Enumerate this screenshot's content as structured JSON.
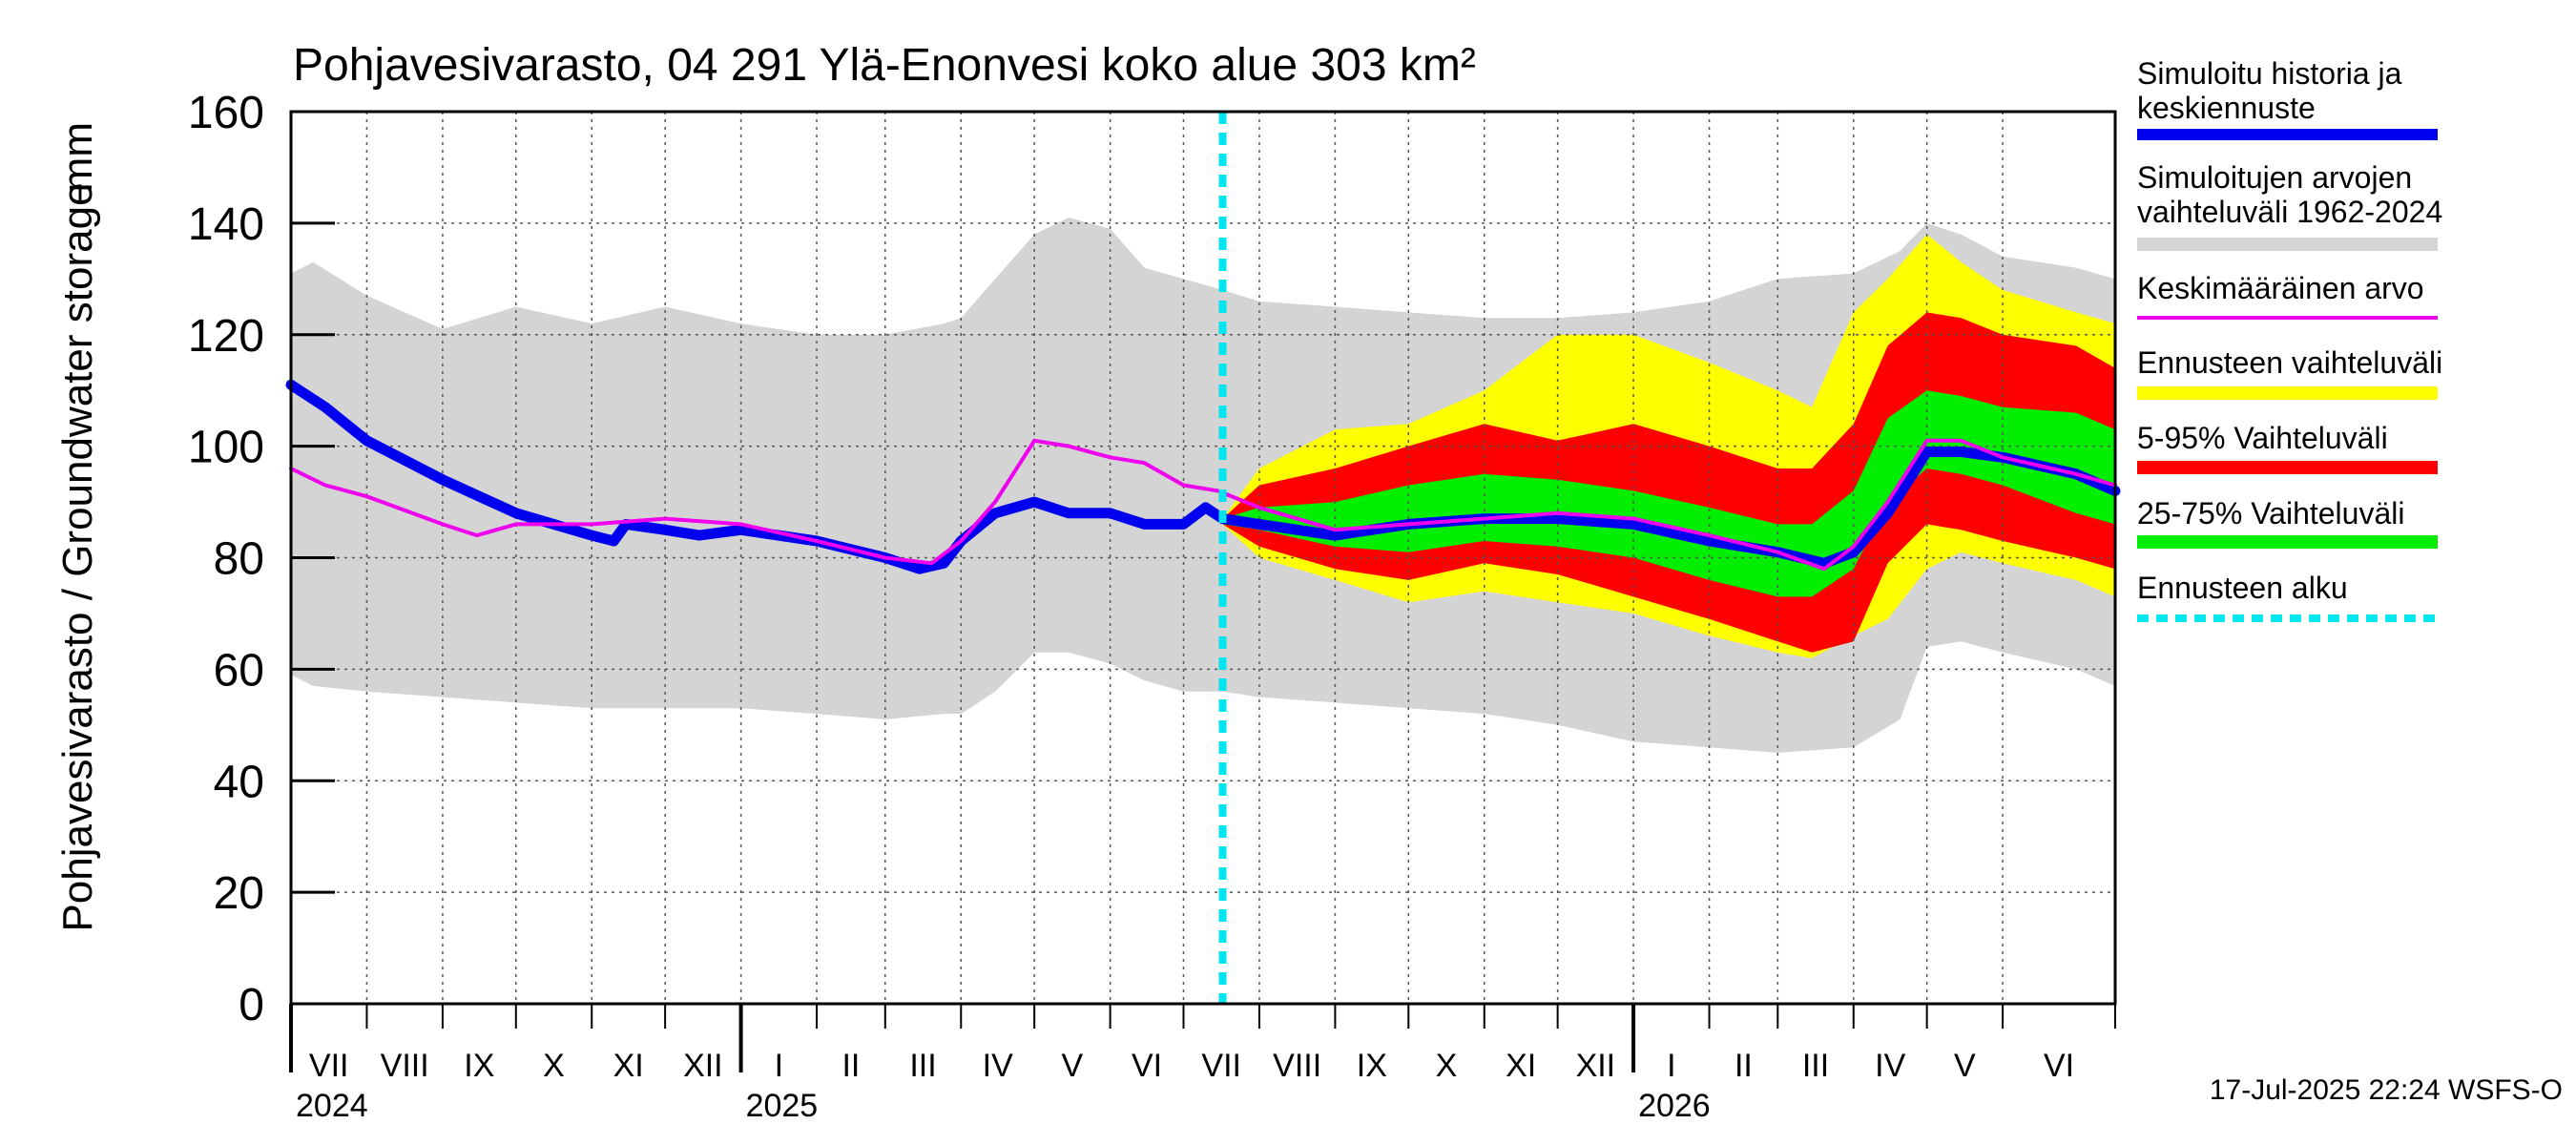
{
  "chart_data": {
    "type": "area",
    "title": "Pohjavesivarasto, 04 291 Ylä-Enonvesi koko alue 303 km²",
    "ylabel": "Pohjavesivarasto / Groundwater storage",
    "yunit": "mm",
    "ylim": [
      0,
      160
    ],
    "yticks": [
      0,
      20,
      40,
      60,
      80,
      100,
      120,
      140,
      160
    ],
    "xlim": [
      "2024-07-01",
      "2026-07-17"
    ],
    "grid": true,
    "legend_position": "right",
    "month_labels": [
      {
        "label": "VII",
        "date": "2024-07-01"
      },
      {
        "label": "VIII",
        "date": "2024-08-01"
      },
      {
        "label": "IX",
        "date": "2024-09-01"
      },
      {
        "label": "X",
        "date": "2024-10-01"
      },
      {
        "label": "XI",
        "date": "2024-11-01"
      },
      {
        "label": "XII",
        "date": "2024-12-01"
      },
      {
        "label": "I",
        "date": "2025-01-01"
      },
      {
        "label": "II",
        "date": "2025-02-01"
      },
      {
        "label": "III",
        "date": "2025-03-01"
      },
      {
        "label": "IV",
        "date": "2025-04-01"
      },
      {
        "label": "V",
        "date": "2025-05-01"
      },
      {
        "label": "VI",
        "date": "2025-06-01"
      },
      {
        "label": "VII",
        "date": "2025-07-01"
      },
      {
        "label": "VIII",
        "date": "2025-08-01"
      },
      {
        "label": "IX",
        "date": "2025-09-01"
      },
      {
        "label": "X",
        "date": "2025-10-01"
      },
      {
        "label": "XI",
        "date": "2025-11-01"
      },
      {
        "label": "XII",
        "date": "2025-12-01"
      },
      {
        "label": "I",
        "date": "2026-01-01"
      },
      {
        "label": "II",
        "date": "2026-02-01"
      },
      {
        "label": "III",
        "date": "2026-03-01"
      },
      {
        "label": "IV",
        "date": "2026-04-01"
      },
      {
        "label": "V",
        "date": "2026-05-01"
      },
      {
        "label": "VI",
        "date": "2026-06-01"
      }
    ],
    "year_labels": [
      {
        "label": "2024",
        "date": "2024-07-01"
      },
      {
        "label": "2025",
        "date": "2025-01-01"
      },
      {
        "label": "2026",
        "date": "2026-01-01"
      }
    ],
    "forecast_start": "2025-07-17",
    "footer": "17-Jul-2025 22:24 WSFS-O",
    "colors": {
      "history": "#0000ee",
      "mean": "#ee00ee",
      "hist_range": "#d4d4d4",
      "forecast_range": "#ffff00",
      "p5_95": "#ff0000",
      "p25_75": "#00ee00",
      "forecast_start": "#00e5ee",
      "grid": "#555555"
    },
    "legend": [
      {
        "key": "history",
        "lines": [
          "Simuloitu historia ja",
          "keskiennuste"
        ],
        "style": "thick-line"
      },
      {
        "key": "hist_range",
        "lines": [
          "Simuloitujen arvojen",
          "vaihteluväli 1962-2024"
        ],
        "style": "band"
      },
      {
        "key": "mean",
        "lines": [
          "Keskimääräinen arvo"
        ],
        "style": "thin-line"
      },
      {
        "key": "forecast_range",
        "lines": [
          "Ennusteen vaihteluväli"
        ],
        "style": "band"
      },
      {
        "key": "p5_95",
        "lines": [
          "5-95% Vaihteluväli"
        ],
        "style": "band"
      },
      {
        "key": "p25_75",
        "lines": [
          "25-75% Vaihteluväli"
        ],
        "style": "band"
      },
      {
        "key": "forecast_start",
        "lines": [
          "Ennusteen alku"
        ],
        "style": "dotted"
      }
    ],
    "series": {
      "hist_range": {
        "x": [
          "2024-07-01",
          "2024-07-10",
          "2024-08-01",
          "2024-09-01",
          "2024-10-01",
          "2024-11-01",
          "2024-12-01",
          "2025-01-01",
          "2025-02-01",
          "2025-03-01",
          "2025-03-25",
          "2025-04-01",
          "2025-04-15",
          "2025-05-01",
          "2025-05-15",
          "2025-06-01",
          "2025-06-15",
          "2025-07-01",
          "2025-07-17",
          "2025-08-01",
          "2025-09-01",
          "2025-10-01",
          "2025-11-01",
          "2025-12-01",
          "2026-01-01",
          "2026-02-01",
          "2026-03-01",
          "2026-04-01",
          "2026-04-20",
          "2026-05-01",
          "2026-05-15",
          "2026-06-01",
          "2026-07-01",
          "2026-07-17"
        ],
        "upper": [
          131,
          133,
          127,
          121,
          125,
          122,
          125,
          122,
          120,
          120,
          122,
          123,
          130,
          138,
          141,
          139,
          132,
          130,
          128,
          126,
          125,
          124,
          123,
          123,
          124,
          126,
          130,
          131,
          135,
          140,
          138,
          134,
          132,
          130
        ],
        "lower": [
          59,
          57,
          56,
          55,
          54,
          53,
          53,
          53,
          52,
          51,
          52,
          52,
          56,
          63,
          63,
          61,
          58,
          56,
          56,
          55,
          54,
          53,
          52,
          50,
          47,
          46,
          45,
          46,
          51,
          64,
          65,
          63,
          60,
          57
        ]
      },
      "forecast_range": {
        "x": [
          "2025-07-17",
          "2025-08-01",
          "2025-09-01",
          "2025-10-01",
          "2025-11-01",
          "2025-12-01",
          "2026-01-01",
          "2026-02-01",
          "2026-03-01",
          "2026-03-15",
          "2026-04-01",
          "2026-04-15",
          "2026-05-01",
          "2026-05-15",
          "2026-06-01",
          "2026-07-01",
          "2026-07-17"
        ],
        "upper": [
          87,
          96,
          103,
          104,
          110,
          120,
          120,
          115,
          110,
          107,
          124,
          130,
          138,
          133,
          128,
          124,
          122
        ],
        "lower": [
          86,
          80,
          76,
          72,
          74,
          72,
          70,
          66,
          63,
          62,
          66,
          69,
          78,
          81,
          79,
          76,
          73
        ]
      },
      "p5_95": {
        "x": [
          "2025-07-17",
          "2025-08-01",
          "2025-09-01",
          "2025-10-01",
          "2025-11-01",
          "2025-12-01",
          "2026-01-01",
          "2026-02-01",
          "2026-03-01",
          "2026-03-15",
          "2026-04-01",
          "2026-04-15",
          "2026-05-01",
          "2026-05-15",
          "2026-06-01",
          "2026-07-01",
          "2026-07-17"
        ],
        "upper": [
          87,
          93,
          96,
          100,
          104,
          101,
          104,
          100,
          96,
          96,
          104,
          118,
          124,
          123,
          120,
          118,
          114
        ],
        "lower": [
          86,
          82,
          78,
          76,
          79,
          77,
          73,
          69,
          65,
          63,
          65,
          79,
          86,
          85,
          83,
          80,
          78
        ]
      },
      "p25_75": {
        "x": [
          "2025-07-17",
          "2025-08-01",
          "2025-09-01",
          "2025-10-01",
          "2025-11-01",
          "2025-12-01",
          "2026-01-01",
          "2026-02-01",
          "2026-03-01",
          "2026-03-15",
          "2026-04-01",
          "2026-04-15",
          "2026-05-01",
          "2026-05-15",
          "2026-06-01",
          "2026-07-01",
          "2026-07-17"
        ],
        "upper": [
          87,
          89,
          90,
          93,
          95,
          94,
          92,
          89,
          86,
          86,
          92,
          105,
          110,
          109,
          107,
          106,
          103
        ],
        "lower": [
          86,
          85,
          82,
          81,
          83,
          82,
          80,
          76,
          73,
          73,
          78,
          90,
          96,
          95,
          93,
          88,
          86
        ]
      },
      "history": {
        "x": [
          "2024-07-01",
          "2024-07-15",
          "2024-08-01",
          "2024-09-01",
          "2024-10-01",
          "2024-11-01",
          "2024-11-10",
          "2024-11-15",
          "2024-12-01",
          "2024-12-15",
          "2025-01-01",
          "2025-02-01",
          "2025-03-01",
          "2025-03-15",
          "2025-03-25",
          "2025-04-01",
          "2025-04-15",
          "2025-05-01",
          "2025-05-15",
          "2025-06-01",
          "2025-06-15",
          "2025-07-01",
          "2025-07-10",
          "2025-07-17",
          "2025-08-01",
          "2025-09-01",
          "2025-10-01",
          "2025-11-01",
          "2025-12-01",
          "2026-01-01",
          "2026-02-01",
          "2026-03-01",
          "2026-03-20",
          "2026-04-01",
          "2026-04-15",
          "2026-05-01",
          "2026-05-15",
          "2026-06-01",
          "2026-07-01",
          "2026-07-17"
        ],
        "y": [
          111,
          107,
          101,
          94,
          88,
          84,
          83,
          86,
          85,
          84,
          85,
          83,
          80,
          78,
          79,
          83,
          88,
          90,
          88,
          88,
          86,
          86,
          89,
          87,
          86,
          84,
          86,
          87,
          87,
          86,
          83,
          81,
          79,
          81,
          88,
          99,
          99,
          98,
          95,
          92
        ]
      },
      "mean": {
        "x": [
          "2024-07-01",
          "2024-07-15",
          "2024-08-01",
          "2024-09-01",
          "2024-09-15",
          "2024-10-01",
          "2024-11-01",
          "2024-12-01",
          "2025-01-01",
          "2025-02-01",
          "2025-03-01",
          "2025-03-20",
          "2025-04-01",
          "2025-04-15",
          "2025-05-01",
          "2025-05-15",
          "2025-06-01",
          "2025-06-15",
          "2025-07-01",
          "2025-07-15",
          "2025-08-01",
          "2025-09-01",
          "2025-10-01",
          "2025-11-01",
          "2025-12-01",
          "2026-01-01",
          "2026-02-01",
          "2026-03-01",
          "2026-03-20",
          "2026-04-01",
          "2026-04-15",
          "2026-05-01",
          "2026-05-15",
          "2026-06-01",
          "2026-07-01",
          "2026-07-17"
        ],
        "y": [
          96,
          93,
          91,
          86,
          84,
          86,
          86,
          87,
          86,
          83,
          80,
          79,
          83,
          90,
          101,
          100,
          98,
          97,
          93,
          92,
          89,
          85,
          86,
          87,
          88,
          87,
          84,
          81,
          78,
          82,
          90,
          101,
          101,
          98,
          95,
          93
        ]
      }
    }
  }
}
